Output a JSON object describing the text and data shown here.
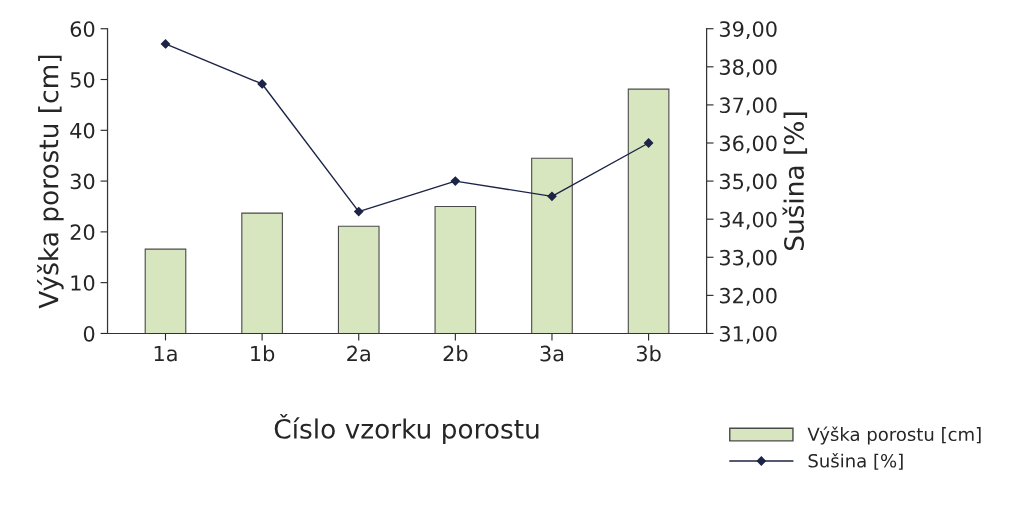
{
  "chart_data": {
    "type": "bar",
    "xlabel": "Číslo vzorku porostu",
    "ylabel": "Výška porostu [cm]",
    "y2label": "Sušina [%]",
    "categories": [
      "1a",
      "1b",
      "2a",
      "2b",
      "3a",
      "3b"
    ],
    "series": [
      {
        "name": "Výška porostu [cm]",
        "color": "#d8e6c0",
        "values": [
          16.6,
          23.7,
          21.1,
          25.0,
          34.5,
          48.1
        ]
      },
      {
        "name": "Sušina [%]",
        "type": "line",
        "axis": "y2",
        "color": "#1c2447",
        "marker": "diamond",
        "values": [
          38.6,
          37.55,
          34.2,
          35.0,
          34.6,
          36.0
        ]
      }
    ],
    "ylim": [
      0,
      60
    ],
    "yticks": [
      0,
      10,
      20,
      30,
      40,
      50,
      60
    ],
    "y2lim": [
      31,
      39
    ],
    "y2ticks": [
      {
        "value": 31,
        "label": "31,00"
      },
      {
        "value": 32,
        "label": "32,00"
      },
      {
        "value": 33,
        "label": "33,00"
      },
      {
        "value": 34,
        "label": "34,00"
      },
      {
        "value": 35,
        "label": "35,00"
      },
      {
        "value": 36,
        "label": "36,00"
      },
      {
        "value": 37,
        "label": "37,00"
      },
      {
        "value": 38,
        "label": "38,00"
      },
      {
        "value": 39,
        "label": "39,00"
      }
    ],
    "grid": false,
    "legend": "bottom right"
  }
}
